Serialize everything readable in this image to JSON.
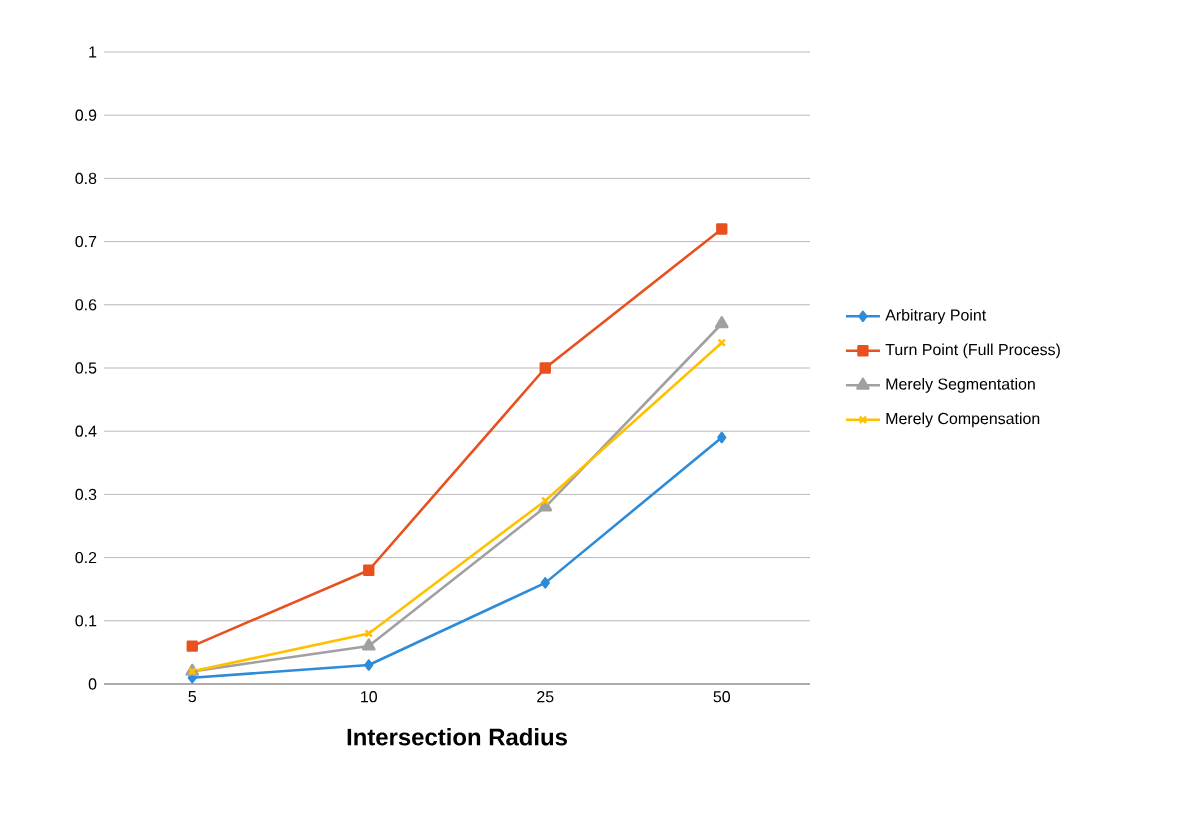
{
  "chart_data": {
    "type": "line",
    "xlabel": "Intersection Radius",
    "categories": [
      "5",
      "10",
      "25",
      "50"
    ],
    "ylim": [
      0,
      1
    ],
    "yticks": [
      0,
      0.1,
      0.2,
      0.3,
      0.4,
      0.5,
      0.6,
      0.7,
      0.8,
      0.9,
      1
    ],
    "grid": "y",
    "legend": "right",
    "line_style": "solid",
    "series": [
      {
        "name": "Arbitrary Point",
        "color": "#2e8bd8",
        "marker": "diamond",
        "values": [
          0.01,
          0.03,
          0.16,
          0.39
        ]
      },
      {
        "name": "Turn Point (Full Process)",
        "color": "#e8501e",
        "marker": "square",
        "values": [
          0.06,
          0.18,
          0.5,
          0.72
        ]
      },
      {
        "name": "Merely Segmentation",
        "color": "#a0a0a0",
        "marker": "triangle",
        "values": [
          0.02,
          0.06,
          0.28,
          0.57
        ]
      },
      {
        "name": "Merely Compensation",
        "color": "#ffc000",
        "marker": "cross",
        "values": [
          0.02,
          0.08,
          0.29,
          0.54
        ]
      }
    ]
  }
}
